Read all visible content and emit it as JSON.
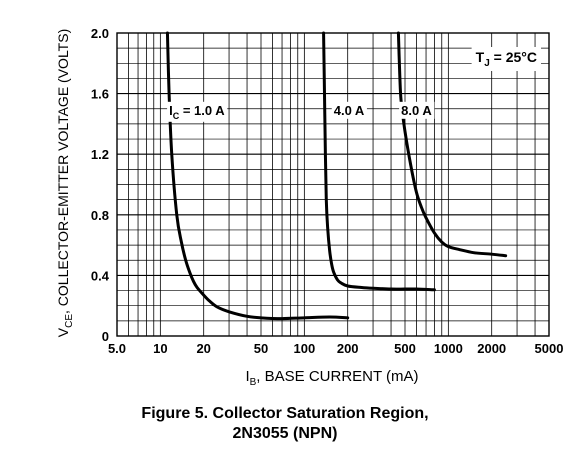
{
  "chart_data": {
    "type": "line",
    "xscale": "log",
    "xlim": [
      5,
      5000
    ],
    "ylim": [
      0,
      2.0
    ],
    "grid": true,
    "xlabel_main": "I",
    "xlabel_sub": "B",
    "xlabel_rest": ", BASE CURRENT (mA)",
    "ylabel_main": "V",
    "ylabel_sub": "CE",
    "ylabel_rest": ", COLLECTOR-EMITTER VOLTAGE (VOLTS)",
    "x_ticks": [
      {
        "value": 5,
        "label": "5.0"
      },
      {
        "value": 10,
        "label": "10"
      },
      {
        "value": 20,
        "label": "20"
      },
      {
        "value": 50,
        "label": "50"
      },
      {
        "value": 100,
        "label": "100"
      },
      {
        "value": 200,
        "label": "200"
      },
      {
        "value": 500,
        "label": "500"
      },
      {
        "value": 1000,
        "label": "1000"
      },
      {
        "value": 2000,
        "label": "2000"
      },
      {
        "value": 5000,
        "label": "5000"
      }
    ],
    "y_ticks": [
      {
        "value": 0,
        "label": "0"
      },
      {
        "value": 0.4,
        "label": "0.4"
      },
      {
        "value": 0.8,
        "label": "0.8"
      },
      {
        "value": 1.2,
        "label": "1.2"
      },
      {
        "value": 1.6,
        "label": "1.6"
      },
      {
        "value": 2.0,
        "label": "2.0"
      }
    ],
    "annotation": {
      "main": "T",
      "sub": "J",
      "rest": " = 25°C"
    },
    "series": [
      {
        "name": "I_C = 1.0 A",
        "label_main": "I",
        "label_sub": "C",
        "label_rest": " = 1.0 A",
        "label_x": 11.5,
        "label_y": 1.46,
        "x": [
          11.2,
          11.5,
          12,
          13,
          14,
          15,
          16,
          17,
          18,
          20,
          22,
          25,
          30,
          40,
          50,
          70,
          100,
          150,
          200
        ],
        "y": [
          2.0,
          1.6,
          1.2,
          0.8,
          0.62,
          0.5,
          0.42,
          0.36,
          0.32,
          0.27,
          0.23,
          0.19,
          0.16,
          0.13,
          0.12,
          0.115,
          0.12,
          0.125,
          0.12
        ]
      },
      {
        "name": "4.0 A",
        "label_main": "4.0 A",
        "label_sub": "",
        "label_rest": "",
        "label_x": 160,
        "label_y": 1.46,
        "x": [
          136,
          138,
          140,
          142,
          145,
          150,
          155,
          160,
          170,
          180,
          200,
          250,
          300,
          400,
          500,
          600,
          800
        ],
        "y": [
          2.0,
          1.6,
          1.2,
          0.9,
          0.72,
          0.56,
          0.47,
          0.42,
          0.37,
          0.35,
          0.33,
          0.32,
          0.315,
          0.31,
          0.31,
          0.31,
          0.305
        ]
      },
      {
        "name": "8.0 A",
        "label_main": "8.0 A",
        "label_sub": "",
        "label_rest": "",
        "label_x": 470,
        "label_y": 1.46,
        "x": [
          450,
          460,
          470,
          500,
          550,
          600,
          650,
          700,
          800,
          900,
          1000,
          1200,
          1500,
          2000,
          2500
        ],
        "y": [
          2.0,
          1.72,
          1.55,
          1.35,
          1.12,
          0.95,
          0.85,
          0.78,
          0.68,
          0.62,
          0.59,
          0.57,
          0.55,
          0.54,
          0.53
        ]
      }
    ]
  },
  "caption": {
    "line1": "Figure 5. Collector Saturation Region,",
    "line2": "2N3055 (NPN)"
  }
}
